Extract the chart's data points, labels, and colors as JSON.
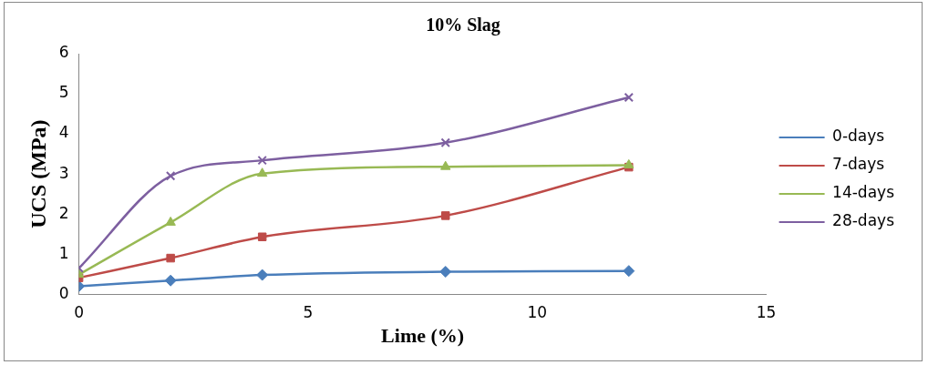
{
  "chart_data": {
    "type": "line",
    "title": "10% Slag",
    "xlabel": "Lime (%)",
    "ylabel": "UCS (MPa)",
    "x": [
      0,
      2,
      4,
      8,
      12
    ],
    "series": [
      {
        "name": "0-days",
        "color": "#4a7ebb",
        "marker": "diamond",
        "values": [
          0.2,
          0.34,
          0.48,
          0.56,
          0.58
        ]
      },
      {
        "name": "7-days",
        "color": "#be4b48",
        "marker": "square",
        "values": [
          0.41,
          0.9,
          1.43,
          1.96,
          3.17
        ]
      },
      {
        "name": "14-days",
        "color": "#98b954",
        "marker": "triangle",
        "values": [
          0.49,
          1.79,
          3.01,
          3.18,
          3.22
        ]
      },
      {
        "name": "28-days",
        "color": "#7d5fa0",
        "marker": "cross",
        "values": [
          0.65,
          2.95,
          3.34,
          3.78,
          4.91
        ]
      }
    ],
    "xlim": [
      0,
      15
    ],
    "xticks": [
      0,
      5,
      10,
      15
    ],
    "ylim": [
      0,
      6
    ],
    "yticks": [
      0,
      1,
      2,
      3,
      4,
      5,
      6
    ],
    "grid": false,
    "legend": "right"
  }
}
